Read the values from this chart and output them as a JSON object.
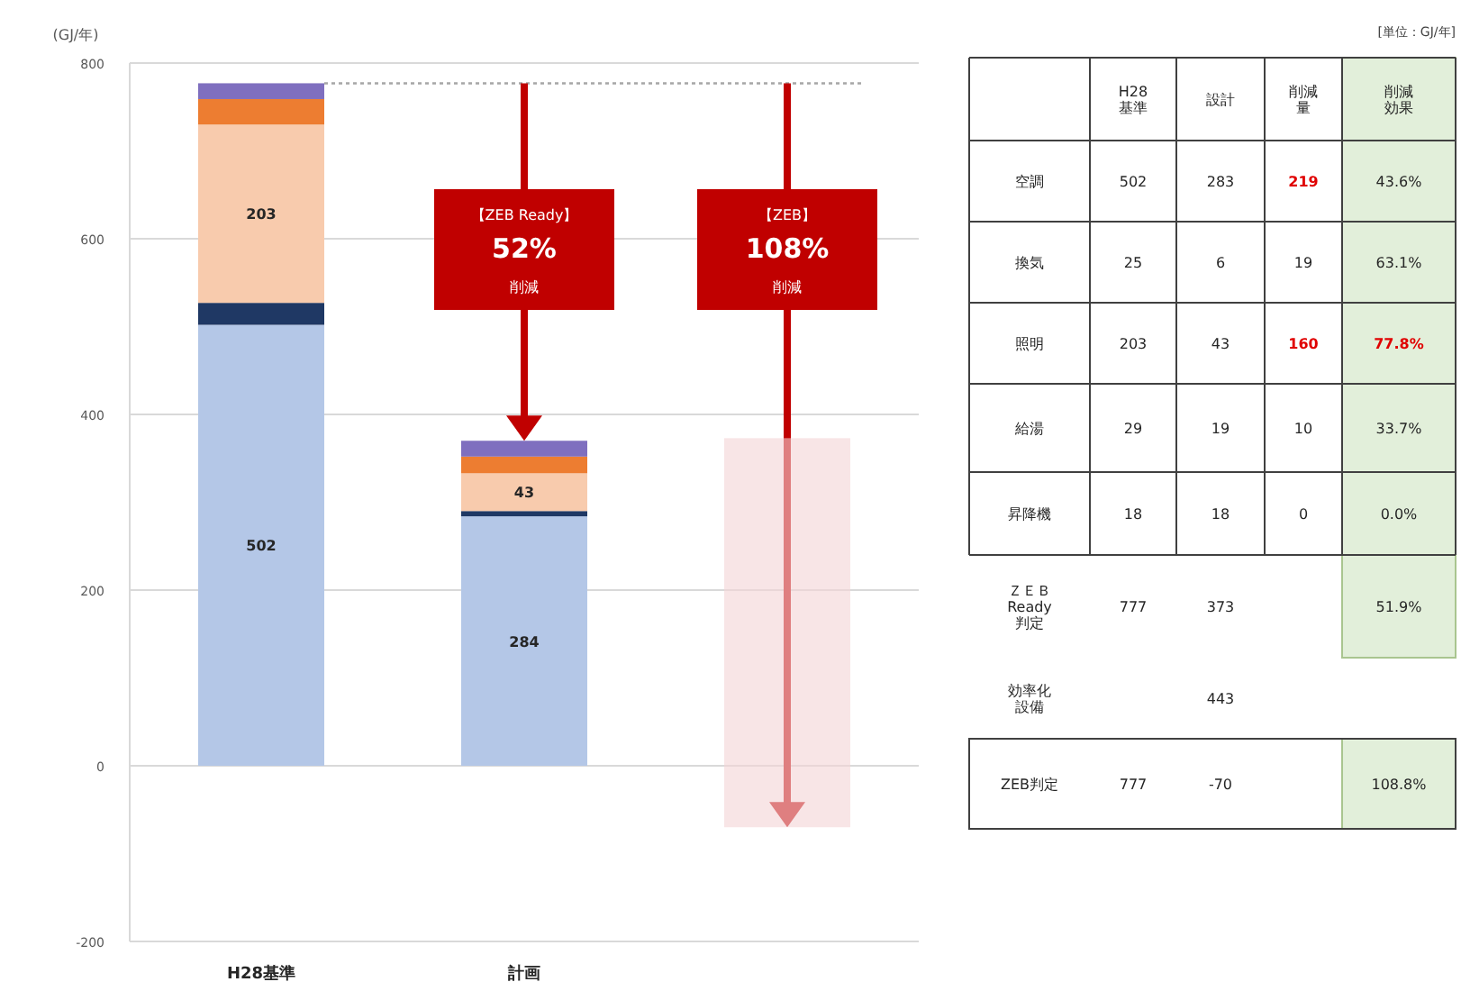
{
  "chart_data": [
    {
      "type": "bar",
      "stacked": true,
      "ylabel": "(GJ/年)",
      "categories": [
        "H28基準",
        "計画",
        null
      ],
      "ylim": [
        -200,
        800
      ],
      "yticks": [
        -200,
        0,
        200,
        400,
        600,
        800
      ],
      "grid": "y",
      "series": [
        {
          "color": "#b4c7e7",
          "values": [
            502,
            284,
            null
          ],
          "value_labels": [
            "502",
            "284",
            null
          ]
        },
        {
          "color": "#1f3864",
          "values": [
            25,
            6,
            null
          ]
        },
        {
          "color": "#f8cbad",
          "values": [
            203,
            43,
            null
          ],
          "value_labels": [
            "203",
            "43",
            null
          ]
        },
        {
          "color": "#ed7d31",
          "values": [
            29,
            19,
            null
          ]
        },
        {
          "color": "#7f6fbf",
          "values": [
            18,
            18,
            null
          ]
        },
        {
          "color": "#f4d4d6",
          "values": [
            null,
            null,
            443
          ],
          "base": [
            null,
            null,
            -70
          ]
        }
      ],
      "ref_lines": [
        {
          "axis": "y",
          "value": 777,
          "color": "#a6a6a6",
          "line_style": "dotted"
        }
      ],
      "annotations": [
        "【ZEB Ready】\n52%\n削減",
        "【ZEB】\n108%\n削減"
      ]
    },
    {
      "type": "other",
      "title": "[単位：GJ/年]",
      "annotations": [
        null,
        "H28基準",
        "設計",
        "削減量",
        "削減効果",
        "空調",
        "502",
        "283",
        "219",
        "43.6%",
        "換気",
        "25",
        "6",
        "19",
        "63.1%",
        "照明",
        "203",
        "43",
        "160",
        "77.8%",
        "給湯",
        "29",
        "19",
        "10",
        "33.7%",
        "昇降機",
        "18",
        "18",
        "0",
        "0.0%",
        "ＺＥＢ Ready判定",
        "777",
        "373",
        null,
        "51.9%",
        "効率化設備",
        null,
        "443",
        null,
        null,
        "ZEB判定",
        "777",
        "-70",
        null,
        "108.8%"
      ]
    }
  ]
}
